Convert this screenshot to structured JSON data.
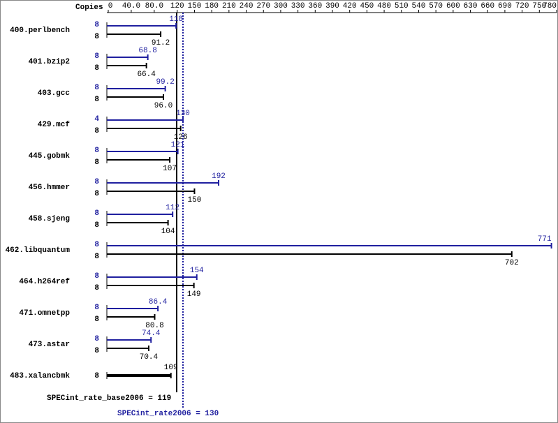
{
  "chart_data": {
    "type": "bar",
    "orientation": "horizontal",
    "copies_label": "Copies",
    "categories": [
      "400.perlbench",
      "401.bzip2",
      "403.gcc",
      "429.mcf",
      "445.gobmk",
      "456.hmmer",
      "458.sjeng",
      "462.libquantum",
      "464.h264ref",
      "471.omnetpp",
      "473.astar",
      "483.xalancbmk"
    ],
    "xlim": [
      0,
      780
    ],
    "xticks": [
      0,
      {
        "value": 40,
        "label": "40.0"
      },
      {
        "value": 80,
        "label": "80.0"
      },
      120,
      150,
      180,
      210,
      240,
      270,
      300,
      330,
      360,
      390,
      420,
      450,
      480,
      510,
      540,
      570,
      600,
      630,
      660,
      690,
      720,
      750,
      780
    ],
    "series": [
      {
        "color": "#1f1f9f",
        "copies": [
          8,
          8,
          8,
          4,
          8,
          8,
          8,
          8,
          8,
          8,
          8,
          null
        ],
        "values": [
          118,
          68.8,
          99.2,
          130,
          121,
          192,
          112,
          771,
          154,
          86.4,
          74.4,
          null
        ]
      },
      {
        "color": "#000000",
        "copies": [
          8,
          8,
          8,
          8,
          8,
          8,
          8,
          8,
          8,
          8,
          8,
          8
        ],
        "values": [
          91.2,
          66.4,
          96,
          126,
          107,
          150,
          104,
          702,
          149,
          80.8,
          70.4,
          109
        ],
        "value_labels": [
          "91.2",
          "66.4",
          "96.0",
          "126",
          "107",
          "150",
          "104",
          "702",
          "149",
          "80.8",
          "70.4",
          "109"
        ]
      }
    ],
    "reference_lines": [
      {
        "label": "SPECint_rate_base2006 = 119",
        "value": 119,
        "color": "#000000",
        "style": "solid"
      },
      {
        "label": "SPECint_rate2006 = 130",
        "value": 130,
        "color": "#1f1f9f",
        "style": "dotted"
      }
    ]
  }
}
